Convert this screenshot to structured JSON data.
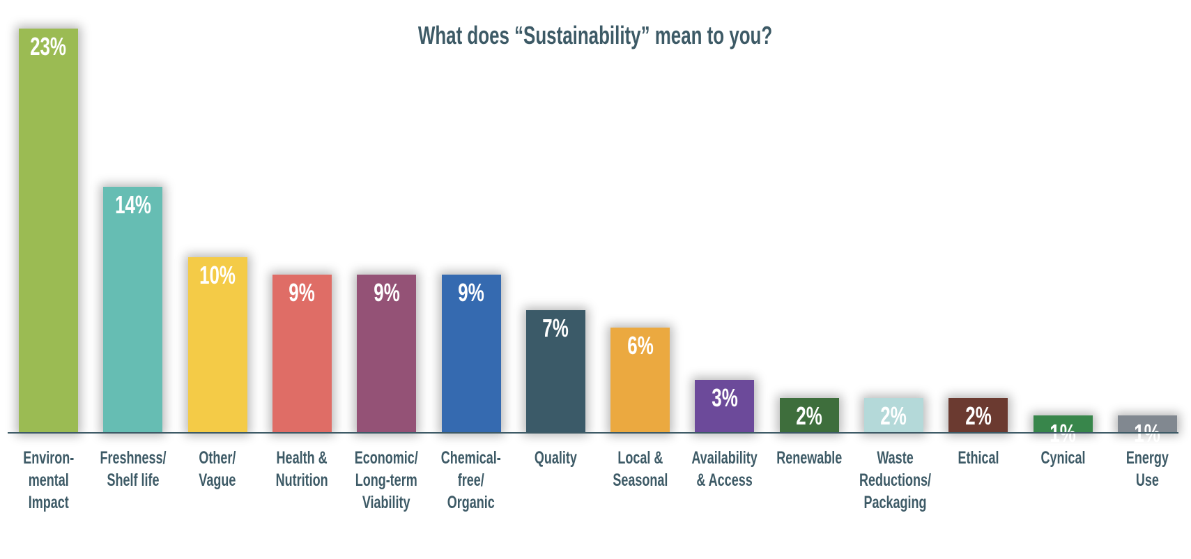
{
  "chart_data": {
    "type": "bar",
    "title": "What does “Sustainability” mean to you?",
    "xlabel": "",
    "ylabel": "",
    "ylim": [
      0,
      23
    ],
    "grid": false,
    "categories": [
      "Environ-\nmental\nImpact",
      "Freshness/\nShelf life",
      "Other/\nVague",
      "Health &\nNutrition",
      "Economic/\nLong-term\nViability",
      "Chemical-\nfree/\nOrganic",
      "Quality",
      "Local &\nSeasonal",
      "Availability\n& Access",
      "Renewable",
      "Waste\nReductions/\nPackaging",
      "Ethical",
      "Cynical",
      "Energy\nUse"
    ],
    "values": [
      23,
      14,
      10,
      9,
      9,
      9,
      7,
      6,
      3,
      2,
      2,
      2,
      1,
      1
    ],
    "data_labels": [
      "23%",
      "14%",
      "10%",
      "9%",
      "9%",
      "9%",
      "7%",
      "6%",
      "3%",
      "2%",
      "2%",
      "2%",
      "1%",
      "1%"
    ],
    "colors": [
      "#9bbb53",
      "#66bdb3",
      "#f4cb47",
      "#df6d66",
      "#945276",
      "#356ab0",
      "#3b5a68",
      "#eba940",
      "#6c4a9a",
      "#3e6e3c",
      "#b4d9d9",
      "#6b3a30",
      "#38864b",
      "#818890"
    ]
  }
}
